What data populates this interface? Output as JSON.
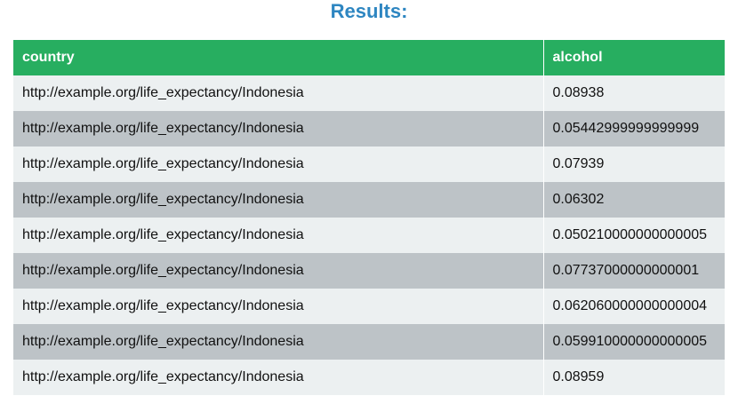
{
  "title": "Results:",
  "columns": [
    "country",
    "alcohol"
  ],
  "rows": [
    [
      "http://example.org/life_expectancy/Indonesia",
      "0.08938"
    ],
    [
      "http://example.org/life_expectancy/Indonesia",
      "0.05442999999999999"
    ],
    [
      "http://example.org/life_expectancy/Indonesia",
      "0.07939"
    ],
    [
      "http://example.org/life_expectancy/Indonesia",
      "0.06302"
    ],
    [
      "http://example.org/life_expectancy/Indonesia",
      "0.050210000000000005"
    ],
    [
      "http://example.org/life_expectancy/Indonesia",
      "0.07737000000000001"
    ],
    [
      "http://example.org/life_expectancy/Indonesia",
      "0.062060000000000004"
    ],
    [
      "http://example.org/life_expectancy/Indonesia",
      "0.059910000000000005"
    ],
    [
      "http://example.org/life_expectancy/Indonesia",
      "0.08959"
    ]
  ],
  "colors": {
    "title": "#2e86c1",
    "header_bg": "#27ae60",
    "row_light": "#ecf0f1",
    "row_dark": "#bdc3c7"
  }
}
